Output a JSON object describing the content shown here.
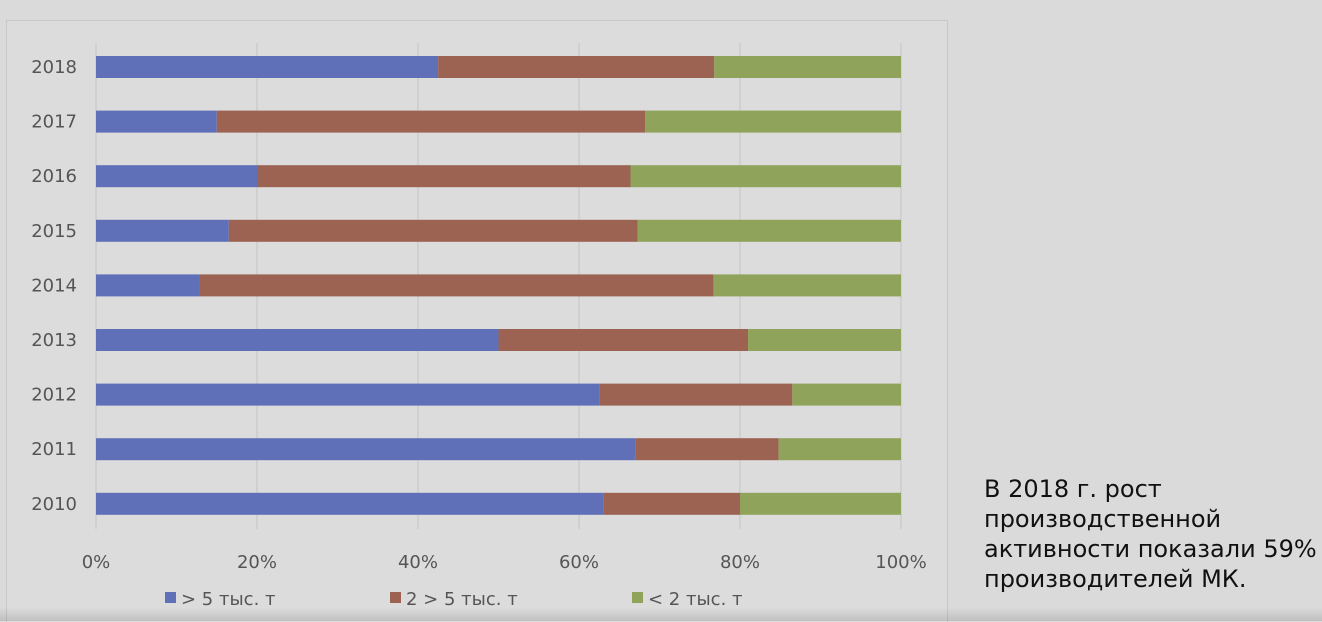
{
  "chart_data": {
    "type": "bar",
    "orientation": "horizontal",
    "stacked": "percent",
    "categories": [
      "2018",
      "2017",
      "2016",
      "2015",
      "2014",
      "2013",
      "2012",
      "2011",
      "2010"
    ],
    "series": [
      {
        "name": "> 5 тыс. т",
        "color": "#6070b8",
        "values": [
          42.5,
          15,
          20,
          16.5,
          12.8,
          50,
          62.5,
          67,
          63
        ]
      },
      {
        "name": "2 > 5 тыс. т",
        "color": "#9c6352",
        "values": [
          34.3,
          53.2,
          46.4,
          50.8,
          63.9,
          31,
          24,
          17.8,
          17
        ]
      },
      {
        "name": "< 2 тыс. т",
        "color": "#8fa35a",
        "values": [
          23.2,
          31.8,
          33.6,
          32.7,
          23.3,
          19,
          13.5,
          15.2,
          20
        ]
      }
    ],
    "xlim": [
      0,
      100
    ],
    "x_ticks": [
      "0%",
      "20%",
      "40%",
      "60%",
      "80%",
      "100%"
    ],
    "grid": true,
    "legend_position": "bottom"
  },
  "caption": {
    "lines": [
      "В 2018 г. рост",
      "производственной",
      "активности показали 59%",
      "производителей МК."
    ]
  }
}
